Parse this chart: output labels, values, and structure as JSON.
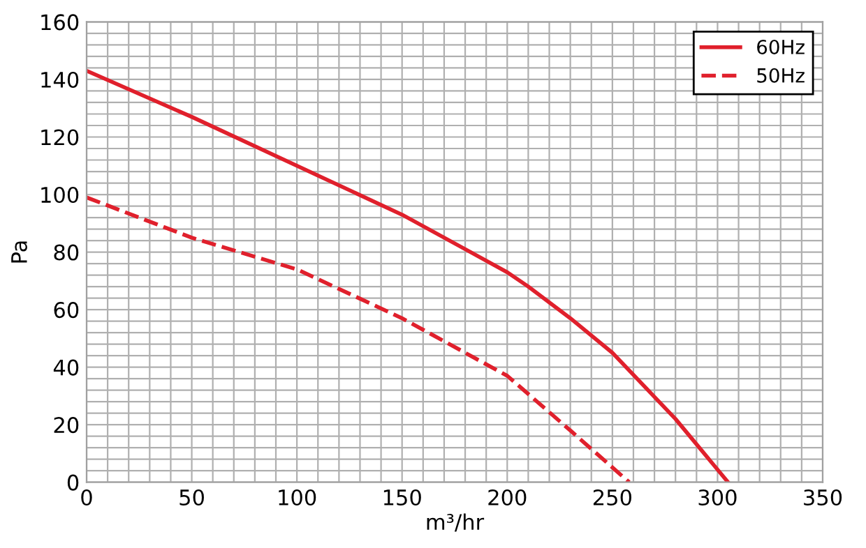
{
  "chart_data": {
    "type": "line",
    "xlabel": "m³/hr",
    "ylabel": "Pa",
    "xlim": [
      0,
      350
    ],
    "ylim": [
      0,
      160
    ],
    "xticks": [
      0,
      {
        "value": 10,
        "label": null
      },
      {
        "value": 20,
        "label": null
      },
      {
        "value": 30,
        "label": null
      },
      {
        "value": 40,
        "label": null
      },
      50,
      {
        "value": 60,
        "label": null
      },
      {
        "value": 70,
        "label": null
      },
      {
        "value": 80,
        "label": null
      },
      {
        "value": 90,
        "label": null
      },
      100,
      {
        "value": 110,
        "label": null
      },
      {
        "value": 120,
        "label": null
      },
      {
        "value": 130,
        "label": null
      },
      {
        "value": 140,
        "label": null
      },
      150,
      {
        "value": 160,
        "label": null
      },
      {
        "value": 170,
        "label": null
      },
      {
        "value": 180,
        "label": null
      },
      {
        "value": 190,
        "label": null
      },
      200,
      {
        "value": 210,
        "label": null
      },
      {
        "value": 220,
        "label": null
      },
      {
        "value": 230,
        "label": null
      },
      {
        "value": 240,
        "label": null
      },
      250,
      {
        "value": 260,
        "label": null
      },
      {
        "value": 270,
        "label": null
      },
      {
        "value": 280,
        "label": null
      },
      {
        "value": 290,
        "label": null
      },
      300,
      {
        "value": 310,
        "label": null
      },
      {
        "value": 320,
        "label": null
      },
      {
        "value": 330,
        "label": null
      },
      {
        "value": 340,
        "label": null
      },
      350
    ],
    "yticks": [
      0,
      {
        "value": 4,
        "label": null
      },
      {
        "value": 8,
        "label": null
      },
      {
        "value": 12,
        "label": null
      },
      {
        "value": 16,
        "label": null
      },
      20,
      {
        "value": 24,
        "label": null
      },
      {
        "value": 28,
        "label": null
      },
      {
        "value": 32,
        "label": null
      },
      {
        "value": 36,
        "label": null
      },
      40,
      {
        "value": 44,
        "label": null
      },
      {
        "value": 48,
        "label": null
      },
      {
        "value": 52,
        "label": null
      },
      {
        "value": 56,
        "label": null
      },
      60,
      {
        "value": 64,
        "label": null
      },
      {
        "value": 68,
        "label": null
      },
      {
        "value": 72,
        "label": null
      },
      {
        "value": 76,
        "label": null
      },
      80,
      {
        "value": 84,
        "label": null
      },
      {
        "value": 88,
        "label": null
      },
      {
        "value": 92,
        "label": null
      },
      {
        "value": 96,
        "label": null
      },
      100,
      {
        "value": 104,
        "label": null
      },
      {
        "value": 108,
        "label": null
      },
      {
        "value": 112,
        "label": null
      },
      {
        "value": 116,
        "label": null
      },
      120,
      {
        "value": 124,
        "label": null
      },
      {
        "value": 128,
        "label": null
      },
      {
        "value": 132,
        "label": null
      },
      {
        "value": 136,
        "label": null
      },
      140,
      {
        "value": 144,
        "label": null
      },
      {
        "value": 148,
        "label": null
      },
      {
        "value": 152,
        "label": null
      },
      {
        "value": 156,
        "label": null
      },
      160
    ],
    "grid": true,
    "legend": "top right",
    "marker": "none",
    "series": [
      {
        "name": "60Hz",
        "color": "#e0202c",
        "line_style": "solid",
        "x": [
          0,
          50,
          100,
          150,
          180,
          200,
          210,
          230,
          250,
          280,
          305
        ],
        "values": [
          143,
          127,
          110,
          93,
          81,
          73,
          68,
          57,
          45,
          22,
          0
        ]
      },
      {
        "name": "50Hz",
        "color": "#e0202c",
        "line_style": "dashed",
        "x": [
          0,
          50,
          100,
          150,
          180,
          200,
          230,
          258
        ],
        "values": [
          99,
          85,
          74,
          57,
          45,
          37,
          18,
          0
        ]
      }
    ]
  }
}
